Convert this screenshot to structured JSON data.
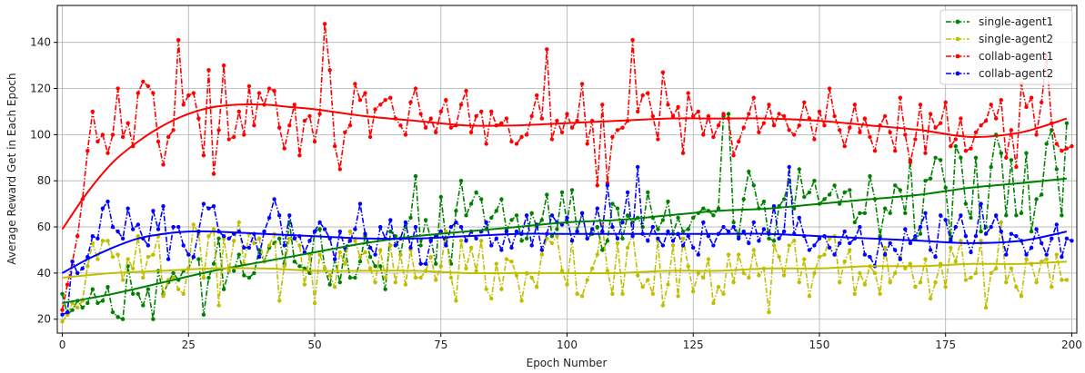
{
  "chart_data": {
    "type": "line",
    "xlabel": "Epoch Number",
    "ylabel": "Average Reward Get in Each Epoch",
    "xlim": [
      -1,
      201
    ],
    "ylim": [
      14,
      156
    ],
    "xticks": [
      0,
      25,
      50,
      75,
      100,
      125,
      150,
      175,
      200
    ],
    "yticks": [
      20,
      40,
      60,
      80,
      100,
      120,
      140
    ],
    "grid": true,
    "legend_position": "top-right",
    "series": [
      {
        "name": "single-agent1",
        "color": "#008000",
        "style": "dash-dot with dots",
        "x_start": 0,
        "values": [
          31,
          22,
          24,
          28,
          25,
          27,
          33,
          27,
          28,
          34,
          23,
          21,
          20,
          43,
          31,
          31,
          26,
          33,
          20,
          41,
          31,
          36,
          40,
          37,
          41,
          42,
          47,
          46,
          22,
          38,
          44,
          55,
          33,
          41,
          41,
          48,
          39,
          38,
          40,
          50,
          45,
          51,
          53,
          55,
          44,
          62,
          45,
          43,
          42,
          40,
          58,
          59,
          42,
          35,
          46,
          36,
          51,
          38,
          38,
          45,
          56,
          47,
          43,
          43,
          33,
          58,
          56,
          48,
          60,
          64,
          82,
          52,
          63,
          55,
          44,
          73,
          55,
          44,
          67,
          80,
          65,
          70,
          75,
          72,
          59,
          64,
          67,
          72,
          59,
          63,
          65,
          54,
          55,
          66,
          60,
          63,
          74,
          56,
          59,
          75,
          62,
          76,
          58,
          66,
          55,
          57,
          60,
          50,
          54,
          70,
          68,
          55,
          65,
          62,
          64,
          60,
          75,
          64,
          59,
          63,
          71,
          57,
          64,
          58,
          59,
          64,
          66,
          68,
          67,
          65,
          68,
          108,
          109,
          62,
          56,
          72,
          84,
          78,
          68,
          71,
          55,
          54,
          69,
          72,
          80,
          68,
          85,
          73,
          75,
          80,
          70,
          72,
          74,
          78,
          70,
          75,
          76,
          62,
          66,
          66,
          82,
          72,
          56,
          68,
          66,
          78,
          76,
          66,
          89,
          55,
          57,
          80,
          81,
          90,
          89,
          77,
          55,
          95,
          90,
          70,
          64,
          90,
          58,
          60,
          86,
          100,
          92,
          65,
          89,
          65,
          66,
          92,
          58,
          72,
          74,
          96,
          102,
          85,
          65,
          105
        ]
      },
      {
        "name": "single-agent2",
        "color": "#bfbf00",
        "style": "dash-dot with dots",
        "x_start": 0,
        "values": [
          19,
          22,
          27,
          25,
          28,
          43,
          53,
          46,
          54,
          54,
          47,
          48,
          37,
          46,
          42,
          56,
          38,
          47,
          48,
          56,
          30,
          37,
          38,
          33,
          31,
          42,
          61,
          57,
          38,
          56,
          59,
          26,
          55,
          41,
          54,
          62,
          44,
          57,
          53,
          55,
          45,
          52,
          57,
          28,
          43,
          55,
          55,
          52,
          35,
          48,
          27,
          48,
          42,
          39,
          34,
          49,
          44,
          58,
          54,
          47,
          49,
          42,
          36,
          50,
          38,
          52,
          36,
          48,
          35,
          50,
          38,
          38,
          41,
          47,
          37,
          43,
          58,
          38,
          28,
          54,
          42,
          51,
          41,
          54,
          33,
          29,
          44,
          33,
          46,
          45,
          39,
          28,
          40,
          38,
          34,
          48,
          55,
          53,
          56,
          41,
          35,
          54,
          31,
          30,
          37,
          42,
          48,
          61,
          41,
          31,
          53,
          31,
          51,
          57,
          39,
          34,
          37,
          31,
          54,
          26,
          35,
          52,
          30,
          55,
          43,
          32,
          40,
          38,
          46,
          27,
          34,
          31,
          48,
          36,
          48,
          40,
          38,
          50,
          39,
          42,
          23,
          52,
          47,
          39,
          52,
          54,
          36,
          46,
          30,
          40,
          47,
          48,
          55,
          56,
          36,
          45,
          50,
          31,
          40,
          35,
          43,
          40,
          31,
          51,
          36,
          40,
          47,
          42,
          44,
          34,
          36,
          46,
          29,
          36,
          44,
          34,
          51,
          45,
          54,
          37,
          38,
          40,
          54,
          25,
          40,
          42,
          62,
          36,
          42,
          34,
          30,
          46,
          44,
          36,
          45,
          46,
          34,
          48,
          37,
          37
        ]
      },
      {
        "name": "collab-agent1",
        "color": "#ff0000",
        "style": "dash-dot with dots",
        "x_start": 0,
        "values": [
          24,
          35,
          45,
          56,
          72,
          93,
          110,
          97,
          100,
          92,
          100,
          120,
          99,
          105,
          95,
          118,
          123,
          121,
          118,
          97,
          87,
          99,
          102,
          141,
          113,
          117,
          118,
          107,
          91,
          128,
          83,
          102,
          130,
          98,
          99,
          110,
          100,
          121,
          104,
          118,
          113,
          120,
          119,
          103,
          94,
          104,
          113,
          91,
          106,
          108,
          97,
          109,
          148,
          128,
          95,
          85,
          101,
          104,
          122,
          115,
          118,
          99,
          111,
          113,
          115,
          116,
          107,
          104,
          100,
          114,
          120,
          109,
          103,
          107,
          101,
          110,
          115,
          103,
          104,
          113,
          119,
          101,
          108,
          110,
          96,
          110,
          104,
          105,
          107,
          97,
          96,
          99,
          100,
          108,
          117,
          107,
          137,
          98,
          106,
          101,
          109,
          103,
          106,
          122,
          96,
          106,
          78,
          113,
          79,
          99,
          102,
          103,
          106,
          141,
          110,
          117,
          118,
          108,
          98,
          127,
          113,
          108,
          112,
          92,
          118,
          108,
          110,
          100,
          108,
          99,
          104,
          109,
          107,
          91,
          97,
          103,
          109,
          116,
          101,
          105,
          113,
          104,
          109,
          108,
          102,
          100,
          104,
          114,
          107,
          98,
          110,
          104,
          120,
          108,
          102,
          95,
          103,
          113,
          101,
          107,
          99,
          93,
          104,
          108,
          101,
          93,
          116,
          100,
          88,
          98,
          113,
          92,
          109,
          103,
          105,
          114,
          95,
          98,
          107,
          93,
          94,
          101,
          104,
          106,
          113,
          107,
          115,
          90,
          102,
          86,
          122,
          112,
          116,
          100,
          114,
          134,
          105,
          96,
          93,
          94,
          95
        ]
      },
      {
        "name": "collab-agent2",
        "color": "#0000ff",
        "style": "dash-dot with dots",
        "x_start": 0,
        "values": [
          22,
          23,
          45,
          40,
          42,
          47,
          56,
          55,
          68,
          71,
          60,
          58,
          55,
          68,
          59,
          61,
          55,
          52,
          67,
          59,
          69,
          46,
          60,
          60,
          52,
          48,
          47,
          58,
          70,
          68,
          69,
          58,
          56,
          55,
          57,
          58,
          51,
          51,
          57,
          47,
          58,
          64,
          72,
          65,
          52,
          65,
          55,
          56,
          49,
          54,
          58,
          62,
          59,
          55,
          46,
          58,
          51,
          54,
          59,
          70,
          57,
          51,
          48,
          60,
          55,
          63,
          52,
          55,
          62,
          51,
          60,
          44,
          44,
          54,
          56,
          58,
          52,
          60,
          62,
          60,
          54,
          58,
          55,
          58,
          62,
          52,
          55,
          50,
          58,
          51,
          58,
          57,
          65,
          52,
          61,
          50,
          57,
          65,
          62,
          61,
          64,
          54,
          58,
          66,
          55,
          59,
          68,
          58,
          78,
          60,
          55,
          62,
          75,
          56,
          86,
          57,
          54,
          60,
          55,
          52,
          58,
          54,
          57,
          52,
          56,
          51,
          48,
          62,
          56,
          52,
          57,
          60,
          58,
          60,
          55,
          58,
          53,
          62,
          54,
          59,
          57,
          69,
          55,
          58,
          86,
          57,
          64,
          56,
          50,
          52,
          55,
          56,
          51,
          48,
          53,
          58,
          53,
          55,
          60,
          48,
          47,
          43,
          55,
          48,
          53,
          50,
          46,
          59,
          53,
          56,
          60,
          66,
          50,
          47,
          65,
          63,
          54,
          60,
          65,
          56,
          49,
          56,
          70,
          57,
          60,
          65,
          58,
          48,
          57,
          56,
          54,
          48,
          51,
          59,
          53,
          48,
          55,
          61,
          47,
          55,
          54
        ]
      },
      {
        "name": "",
        "color": "#008000",
        "style": "smooth trend",
        "x": [
          0,
          10,
          20,
          30,
          40,
          50,
          60,
          70,
          80,
          90,
          100,
          110,
          120,
          130,
          140,
          150,
          160,
          170,
          180,
          190,
          199
        ],
        "values": [
          27,
          31,
          36,
          41,
          45,
          49,
          53,
          56,
          58,
          60,
          62,
          63,
          65,
          67,
          68,
          70,
          72,
          74,
          77,
          79,
          81
        ]
      },
      {
        "name": "",
        "color": "#bfbf00",
        "style": "smooth trend",
        "x": [
          0,
          10,
          20,
          30,
          40,
          50,
          60,
          70,
          80,
          90,
          100,
          110,
          120,
          130,
          140,
          150,
          160,
          170,
          180,
          190,
          199
        ],
        "values": [
          38,
          40,
          41,
          42,
          42,
          41,
          41,
          41,
          40,
          40,
          40,
          40,
          41,
          41,
          42,
          42,
          43,
          43,
          44,
          44,
          45
        ]
      },
      {
        "name": "",
        "color": "#ff0000",
        "style": "smooth trend",
        "x": [
          0,
          5,
          10,
          15,
          20,
          25,
          30,
          35,
          40,
          45,
          50,
          60,
          70,
          80,
          90,
          100,
          110,
          120,
          130,
          140,
          150,
          160,
          170,
          180,
          190,
          199
        ],
        "values": [
          59,
          75,
          88,
          97,
          104,
          109,
          112,
          113,
          113,
          112,
          111,
          108,
          106,
          104,
          104,
          105,
          106,
          107,
          107,
          107,
          106,
          104,
          102,
          99,
          101,
          107
        ]
      },
      {
        "name": "",
        "color": "#0000ff",
        "style": "smooth trend",
        "x": [
          0,
          5,
          10,
          15,
          20,
          25,
          30,
          40,
          50,
          60,
          70,
          80,
          90,
          100,
          110,
          120,
          130,
          140,
          150,
          160,
          170,
          180,
          190,
          199
        ],
        "values": [
          40,
          46,
          51,
          55,
          57,
          58,
          58,
          57,
          56,
          55,
          55,
          56,
          57,
          57,
          57,
          57,
          57,
          57,
          56,
          55,
          54,
          53,
          54,
          58
        ]
      }
    ]
  }
}
